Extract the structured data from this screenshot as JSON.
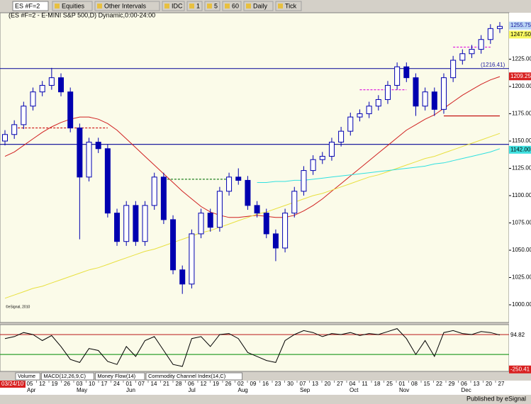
{
  "toolbar": {
    "symbol": "ES #F=2",
    "buttons": [
      "Equities",
      "Other Intervals",
      "IDC",
      "1",
      "5",
      "60",
      "Daily",
      "Tick"
    ]
  },
  "chart_data": [
    {
      "type": "candlestick",
      "title": "(ES #F=2 - E-MINI S&P 500,D) Dynamic,0:00-24:00",
      "watermark": "©eSignal, 2010",
      "up_color": "#ffffff",
      "down_color": "#0000b0",
      "outline_color": "#0000b0",
      "open": [
        1150,
        1156,
        1165,
        1182,
        1195,
        1201,
        1208,
        1195,
        1162,
        1117,
        1149,
        1143,
        1084,
        1058,
        1091,
        1058,
        1091,
        1117,
        1078,
        1032,
        1019,
        1065,
        1084,
        1071,
        1104,
        1117,
        1114,
        1091,
        1084,
        1065,
        1052,
        1084,
        1104,
        1123,
        1133,
        1136,
        1149,
        1159,
        1172,
        1175,
        1182,
        1188,
        1201,
        1218,
        1208,
        1182,
        1195,
        1179,
        1208,
        1224,
        1230,
        1234,
        1243,
        1253
      ],
      "high": [
        1160,
        1169,
        1186,
        1199,
        1205,
        1217,
        1212,
        1199,
        1166,
        1153,
        1153,
        1147,
        1088,
        1095,
        1095,
        1095,
        1121,
        1121,
        1082,
        1036,
        1069,
        1088,
        1088,
        1108,
        1121,
        1125,
        1118,
        1095,
        1088,
        1069,
        1088,
        1108,
        1127,
        1137,
        1140,
        1153,
        1163,
        1176,
        1179,
        1186,
        1192,
        1205,
        1222,
        1222,
        1212,
        1199,
        1199,
        1212,
        1228,
        1234,
        1238,
        1247,
        1257,
        1259
      ],
      "low": [
        1146,
        1152,
        1161,
        1178,
        1191,
        1197,
        1191,
        1158,
        1060,
        1113,
        1139,
        1080,
        1054,
        1054,
        1054,
        1054,
        1087,
        1074,
        1028,
        1010,
        1015,
        1061,
        1067,
        1067,
        1100,
        1110,
        1087,
        1080,
        1061,
        1040,
        1048,
        1080,
        1100,
        1119,
        1129,
        1132,
        1145,
        1155,
        1168,
        1171,
        1178,
        1184,
        1197,
        1204,
        1173,
        1178,
        1173,
        1175,
        1204,
        1220,
        1226,
        1230,
        1239,
        1249
      ],
      "close": [
        1156,
        1165,
        1182,
        1195,
        1201,
        1208,
        1195,
        1162,
        1117,
        1149,
        1143,
        1084,
        1058,
        1091,
        1058,
        1091,
        1117,
        1078,
        1032,
        1019,
        1065,
        1084,
        1071,
        1104,
        1117,
        1114,
        1091,
        1084,
        1065,
        1052,
        1084,
        1104,
        1123,
        1133,
        1136,
        1149,
        1159,
        1172,
        1175,
        1182,
        1188,
        1201,
        1218,
        1208,
        1182,
        1195,
        1179,
        1208,
        1224,
        1230,
        1234,
        1243,
        1253,
        1255
      ],
      "overlays": [
        {
          "color": "#d02020",
          "values": [
            1136,
            1140,
            1146,
            1152,
            1158,
            1163,
            1167,
            1170,
            1172,
            1172,
            1170,
            1166,
            1160,
            1152,
            1144,
            1136,
            1128,
            1120,
            1112,
            1104,
            1097,
            1090,
            1085,
            1082,
            1080,
            1080,
            1081,
            1082,
            1081,
            1080,
            1080,
            1082,
            1086,
            1091,
            1097,
            1104,
            1111,
            1118,
            1125,
            1132,
            1139,
            1146,
            1153,
            1160,
            1165,
            1170,
            1174,
            1180,
            1186,
            1192,
            1197,
            1202,
            1206,
            1209
          ]
        },
        {
          "color": "#e8e040",
          "values": [
            1006,
            1009,
            1012,
            1015,
            1017,
            1020,
            1023,
            1026,
            1029,
            1032,
            1034,
            1037,
            1040,
            1043,
            1046,
            1049,
            1051,
            1054,
            1057,
            1060,
            1063,
            1066,
            1068,
            1071,
            1074,
            1077,
            1080,
            1083,
            1085,
            1088,
            1091,
            1094,
            1097,
            1100,
            1102,
            1105,
            1108,
            1111,
            1114,
            1117,
            1119,
            1122,
            1125,
            1128,
            1131,
            1134,
            1136,
            1139,
            1142,
            1145,
            1148,
            1151,
            1154,
            1157
          ]
        },
        {
          "color": "#30e0e0",
          "values": [
            null,
            null,
            null,
            null,
            null,
            null,
            null,
            null,
            null,
            null,
            null,
            null,
            null,
            null,
            null,
            null,
            null,
            null,
            null,
            null,
            null,
            null,
            null,
            null,
            null,
            null,
            null,
            1112,
            1112,
            1113,
            1113,
            1114,
            1114,
            1115,
            1116,
            1117,
            1118,
            1119,
            1120,
            1121,
            1122,
            1123,
            1124,
            1125,
            1126,
            1127,
            1129,
            1130,
            1132,
            1134,
            1136,
            1138,
            1140,
            1143
          ]
        }
      ],
      "levels": [
        {
          "value": 1216.41,
          "color": "#2020a0",
          "label": "(1216.41)"
        },
        {
          "value": 1147,
          "color": "#2020a0"
        },
        {
          "value": 1173,
          "color": "#c00000",
          "span": [
            47,
            53
          ]
        },
        {
          "value": 1162,
          "color": "#d02020",
          "dashed": true,
          "span": [
            1,
            11
          ]
        },
        {
          "value": 1115,
          "color": "#208020",
          "dashed": true,
          "span": [
            17,
            24
          ]
        },
        {
          "value": 1197,
          "color": "#e020e0",
          "dashed": true,
          "span": [
            38,
            43
          ]
        },
        {
          "value": 1236,
          "color": "#e020e0",
          "dashed": true,
          "span": [
            48,
            52
          ]
        }
      ],
      "price_labels": [
        {
          "value": 1255.75,
          "color": "#b8d4f4",
          "text_color": "#2020a0"
        },
        {
          "value": 1247.5,
          "label": "1247.50",
          "color": "#f8f860",
          "text_color": "#000000"
        },
        {
          "value": 1209.25,
          "color": "#d82020",
          "text_color": "#ffffff"
        },
        {
          "value": 1142,
          "label": "1142.00",
          "color": "#40e0e0",
          "text_color": "#000000"
        }
      ],
      "ylim": [
        983.8,
        1267.5
      ],
      "yticks": [
        {
          "value": 1000,
          "label": "1000.00"
        },
        {
          "value": 1025,
          "label": "1025.00"
        },
        {
          "value": 1050,
          "label": "1050.00"
        },
        {
          "value": 1075,
          "label": "1075.00"
        },
        {
          "value": 1100,
          "label": "1100.00"
        },
        {
          "value": 1125,
          "label": "1125.00"
        },
        {
          "value": 1150,
          "label": "1150.00"
        },
        {
          "value": 1175,
          "label": "1175.00"
        },
        {
          "value": 1200,
          "label": "1200.00"
        },
        {
          "value": 1225,
          "label": "1225.00"
        }
      ]
    },
    {
      "type": "line",
      "color": "#000000",
      "values": [
        60,
        80,
        120,
        100,
        40,
        90,
        -20,
        -150,
        -180,
        -40,
        -60,
        -170,
        -200,
        -20,
        -120,
        40,
        80,
        -60,
        -200,
        -220,
        60,
        80,
        -20,
        100,
        110,
        60,
        -80,
        -120,
        -160,
        -180,
        40,
        100,
        140,
        120,
        80,
        110,
        100,
        120,
        90,
        110,
        100,
        130,
        160,
        60,
        -100,
        40,
        -120,
        120,
        140,
        110,
        100,
        130,
        120,
        95
      ],
      "levels": [
        {
          "value": 100,
          "color": "#c03030"
        },
        {
          "value": -100,
          "color": "#30a030"
        }
      ],
      "price_labels": [
        {
          "value": 94.82,
          "color": "#ffffff",
          "text_color": "#000000"
        },
        {
          "value": -250.41,
          "color": "#d82020",
          "text_color": "#ffffff"
        }
      ],
      "ylim": [
        -270,
        200
      ]
    }
  ],
  "indicator_tabs": [
    "Volume",
    "MACD(12,26,9,C)",
    "Money Flow(14)",
    "Commodity Channel Index(14,C)"
  ],
  "date_axis": {
    "start_label": "03/24/10",
    "months": [
      {
        "month": "Apr",
        "days": [
          "05",
          "12",
          "19",
          "26"
        ]
      },
      {
        "month": "May",
        "days": [
          "03",
          "10",
          "17",
          "24"
        ]
      },
      {
        "month": "Jun",
        "days": [
          "01",
          "07",
          "14",
          "21",
          "28"
        ]
      },
      {
        "month": "Jul",
        "days": [
          "06",
          "12",
          "19",
          "26"
        ]
      },
      {
        "month": "Aug",
        "days": [
          "02",
          "09",
          "16",
          "23",
          "30"
        ]
      },
      {
        "month": "Sep",
        "days": [
          "07",
          "13",
          "20",
          "27"
        ]
      },
      {
        "month": "Oct",
        "days": [
          "04",
          "11",
          "18",
          "25"
        ]
      },
      {
        "month": "Nov",
        "days": [
          "01",
          "08",
          "15",
          "22",
          "29"
        ]
      },
      {
        "month": "Dec",
        "days": [
          "06",
          "13",
          "20",
          "27"
        ]
      }
    ]
  },
  "status": "Published by eSignal"
}
